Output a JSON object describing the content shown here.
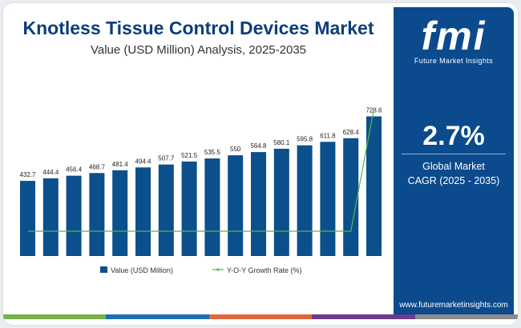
{
  "header": {
    "title": "Knotless Tissue Control Devices Market",
    "subtitle": "Value (USD Million) Analysis, 2025-2035"
  },
  "chart_data": {
    "type": "bar",
    "categories": [
      "",
      "",
      "",
      "",
      "",
      "",
      "",
      "",
      "",
      "",
      "",
      "",
      "",
      "",
      "",
      ""
    ],
    "series": [
      {
        "name": "Value (USD Million)",
        "type": "bar",
        "color": "#0b4f8c",
        "values": [
          432.7,
          444.4,
          456.4,
          468.7,
          481.4,
          494.4,
          507.7,
          521.5,
          535.5,
          550,
          564.8,
          580.1,
          595.8,
          611.8,
          628.4,
          728.6
        ],
        "labels": [
          "432.7",
          "444.4",
          "456.4",
          "468.7",
          "481.4",
          "494.4",
          "507.7",
          "521.5",
          "535.5",
          "550",
          "564.8",
          "580.1",
          "595.8",
          "611.8",
          "628.4",
          "728.6"
        ]
      },
      {
        "name": "Y-O-Y Growth Rate (%)",
        "type": "line",
        "color": "#53b84a",
        "values": [
          2.7,
          2.7,
          2.7,
          2.7,
          2.7,
          2.7,
          2.7,
          2.7,
          2.7,
          2.7,
          2.7,
          2.7,
          2.7,
          2.7,
          2.7,
          15.9
        ]
      }
    ],
    "legend_position": "bottom",
    "grid": false
  },
  "side_panel": {
    "brand_logo": "fmi",
    "brand_name": "Future Market Insights",
    "cagr_value": "2.7%",
    "cagr_label_line1": "Global Market",
    "cagr_label_line2": "CAGR (2025 - 2035)",
    "website": "www.futuremarketinsights.com"
  },
  "colors": {
    "title": "#0b3e7b",
    "panel": "#0b4a8c",
    "bar": "#0b4f8c",
    "line": "#53b84a"
  }
}
